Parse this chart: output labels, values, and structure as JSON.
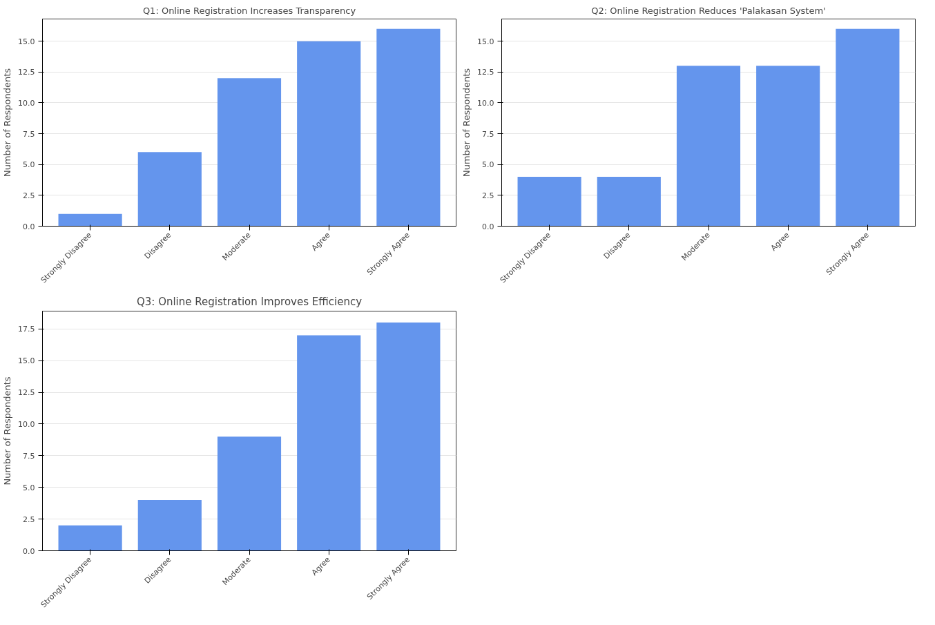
{
  "chart_data": [
    {
      "type": "bar",
      "title": "Q1: Online Registration Increases Transparency",
      "ylabel": "Number of Respondents",
      "categories": [
        "Strongly Disagree",
        "Disagree",
        "Moderate",
        "Agree",
        "Strongly Agree"
      ],
      "values": [
        1,
        6,
        12,
        15,
        16
      ],
      "color": "#6495ed",
      "ylim": [
        0,
        16.8
      ],
      "yticks": [
        {
          "value": 0,
          "label": "0.0"
        },
        2.5,
        {
          "value": 5,
          "label": "5.0"
        },
        7.5,
        {
          "value": 10,
          "label": "10.0"
        },
        12.5,
        {
          "value": 15,
          "label": "15.0"
        }
      ],
      "grid": "y"
    },
    {
      "type": "bar",
      "title": "Q2: Online Registration Reduces 'Palakasan System'",
      "ylabel": "Number of Respondents",
      "categories": [
        "Strongly Disagree",
        "Disagree",
        "Moderate",
        "Agree",
        "Strongly Agree"
      ],
      "values": [
        4,
        4,
        13,
        13,
        16
      ],
      "color": "#6495ed",
      "ylim": [
        0,
        16.8
      ],
      "yticks": [
        {
          "value": 0,
          "label": "0.0"
        },
        2.5,
        {
          "value": 5,
          "label": "5.0"
        },
        7.5,
        {
          "value": 10,
          "label": "10.0"
        },
        12.5,
        {
          "value": 15,
          "label": "15.0"
        }
      ],
      "grid": "y"
    },
    {
      "type": "bar",
      "title": "Q3: Online Registration Improves Efficiency",
      "ylabel": "Number of Respondents",
      "categories": [
        "Strongly Disagree",
        "Disagree",
        "Moderate",
        "Agree",
        "Strongly Agree"
      ],
      "values": [
        2,
        4,
        9,
        17,
        18
      ],
      "color": "#6495ed",
      "ylim": [
        0,
        18.9
      ],
      "yticks": [
        {
          "value": 0,
          "label": "0.0"
        },
        2.5,
        {
          "value": 5,
          "label": "5.0"
        },
        7.5,
        {
          "value": 10,
          "label": "10.0"
        },
        12.5,
        {
          "value": 15,
          "label": "15.0"
        },
        17.5
      ],
      "grid": "y"
    }
  ]
}
